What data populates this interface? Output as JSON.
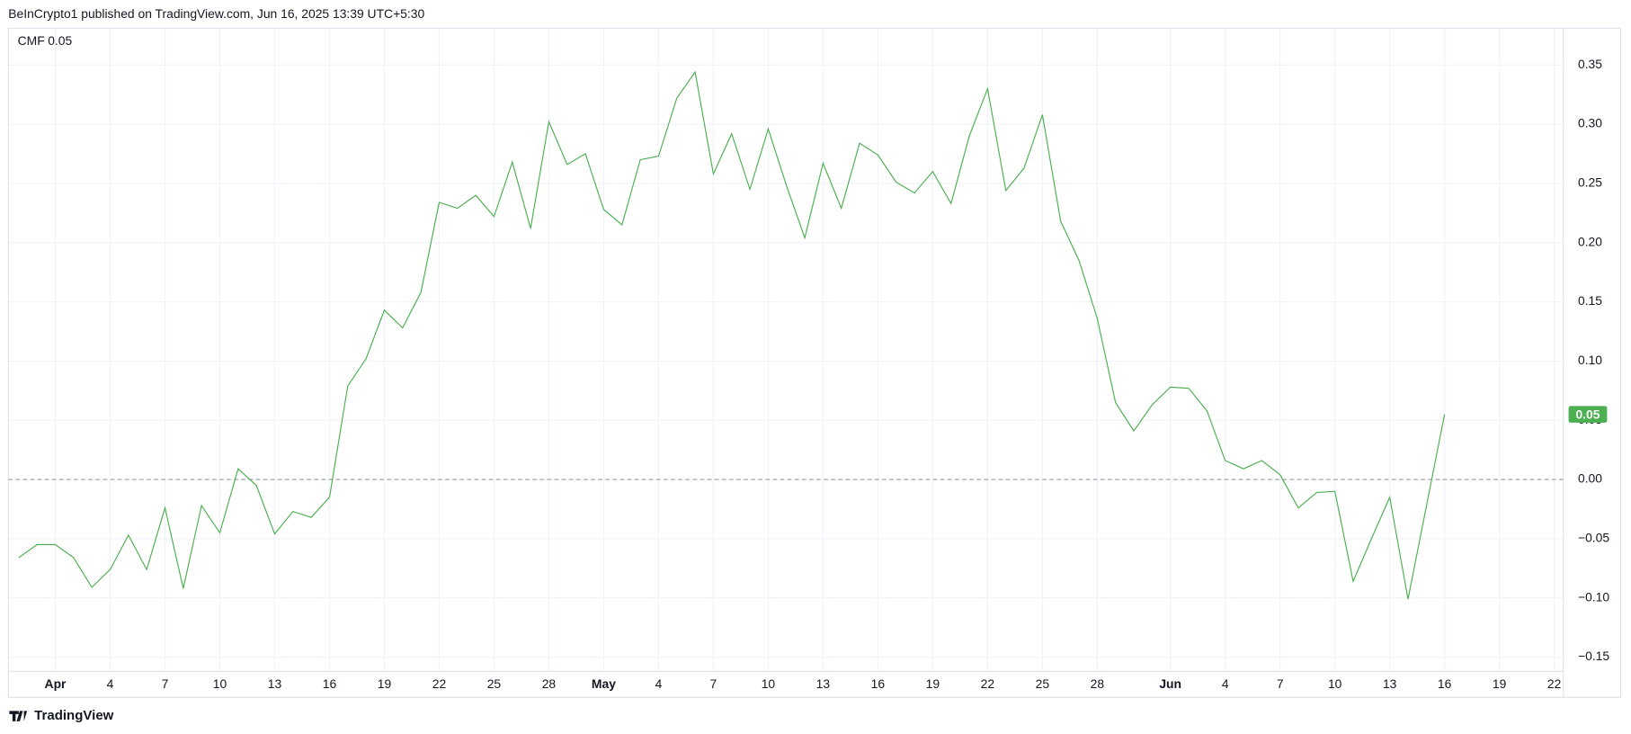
{
  "header": "BeInCrypto1 published on TradingView.com, Jun 16, 2025 13:39 UTC+5:30",
  "footer": "TradingView",
  "chart_data": {
    "type": "line",
    "series": [
      {
        "name": "CMF",
        "color": "#4caf50",
        "last_label": "0.05",
        "values": [
          -0.066,
          -0.055,
          -0.055,
          -0.066,
          -0.091,
          -0.076,
          -0.047,
          -0.076,
          -0.024,
          -0.092,
          -0.022,
          -0.045,
          0.009,
          -0.005,
          -0.046,
          -0.027,
          -0.032,
          -0.015,
          0.079,
          0.102,
          0.143,
          0.128,
          0.158,
          0.234,
          0.229,
          0.24,
          0.222,
          0.268,
          0.212,
          0.302,
          0.266,
          0.275,
          0.228,
          0.215,
          0.27,
          0.273,
          0.322,
          0.344,
          0.258,
          0.292,
          0.245,
          0.296,
          0.248,
          0.204,
          0.267,
          0.229,
          0.284,
          0.274,
          0.251,
          0.242,
          0.26,
          0.233,
          0.29,
          0.33,
          0.244,
          0.263,
          0.308,
          0.218,
          0.185,
          0.136,
          0.065,
          0.041,
          0.063,
          0.078,
          0.077,
          0.058,
          0.016,
          0.009,
          0.016,
          0.004,
          -0.024,
          -0.011,
          -0.01,
          -0.086,
          -0.05,
          -0.015,
          -0.101,
          -0.023,
          0.055
        ]
      }
    ],
    "baseline": 0,
    "grid": true,
    "xlim": [
      -0.57,
      84.5
    ],
    "xticks": [
      {
        "value": 2,
        "label": "Apr"
      },
      {
        "value": 5,
        "label": "4"
      },
      {
        "value": 8,
        "label": "7"
      },
      {
        "value": 11,
        "label": "10"
      },
      {
        "value": 14,
        "label": "13"
      },
      {
        "value": 17,
        "label": "16"
      },
      {
        "value": 20,
        "label": "19"
      },
      {
        "value": 23,
        "label": "22"
      },
      {
        "value": 26,
        "label": "25"
      },
      {
        "value": 29,
        "label": "28"
      },
      {
        "value": 32,
        "label": "May"
      },
      {
        "value": 35,
        "label": "4"
      },
      {
        "value": 38,
        "label": "7"
      },
      {
        "value": 41,
        "label": "10"
      },
      {
        "value": 44,
        "label": "13"
      },
      {
        "value": 47,
        "label": "16"
      },
      {
        "value": 50,
        "label": "19"
      },
      {
        "value": 53,
        "label": "22"
      },
      {
        "value": 56,
        "label": "25"
      },
      {
        "value": 59,
        "label": "28"
      },
      {
        "value": 63,
        "label": "Jun"
      },
      {
        "value": 66,
        "label": "4"
      },
      {
        "value": 69,
        "label": "7"
      },
      {
        "value": 72,
        "label": "10"
      },
      {
        "value": 75,
        "label": "13"
      },
      {
        "value": 78,
        "label": "16"
      },
      {
        "value": 81,
        "label": "19"
      },
      {
        "value": 84,
        "label": "22"
      }
    ],
    "ylim": [
      -0.184,
      0.381
    ],
    "yticks": [
      {
        "value": 0.35,
        "label": "0.35"
      },
      {
        "value": 0.3,
        "label": "0.30"
      },
      {
        "value": 0.25,
        "label": "0.25"
      },
      {
        "value": 0.2,
        "label": "0.20"
      },
      {
        "value": 0.15,
        "label": "0.15"
      },
      {
        "value": 0.1,
        "label": "0.10"
      },
      {
        "value": 0.05,
        "label": "0.05"
      },
      {
        "value": 0,
        "label": "0.00"
      },
      {
        "value": -0.05,
        "label": "−0.05"
      },
      {
        "value": -0.1,
        "label": "−0.10"
      },
      {
        "value": -0.15,
        "label": "−0.15"
      }
    ]
  }
}
